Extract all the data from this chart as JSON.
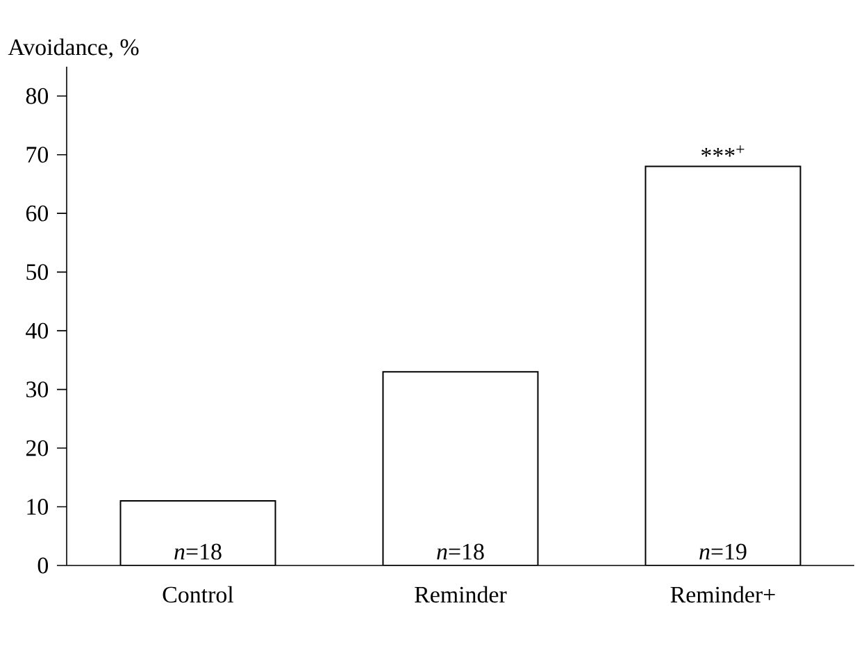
{
  "chart_data": {
    "type": "bar",
    "ylabel": "Avoidance, %",
    "categories": [
      "Control",
      "Reminder",
      "Reminder+"
    ],
    "values": [
      11,
      33,
      68
    ],
    "color": "#ffffff",
    "ylim": [
      0,
      85
    ],
    "yticks": [
      0,
      10,
      20,
      30,
      40,
      50,
      60,
      70,
      80
    ],
    "grid": false,
    "annotations": [
      "*n*=18",
      "*n*=18",
      "*n*=19",
      {
        "text": "***$^{+}$",
        "x": "Reminder+",
        "y": 68
      }
    ]
  }
}
